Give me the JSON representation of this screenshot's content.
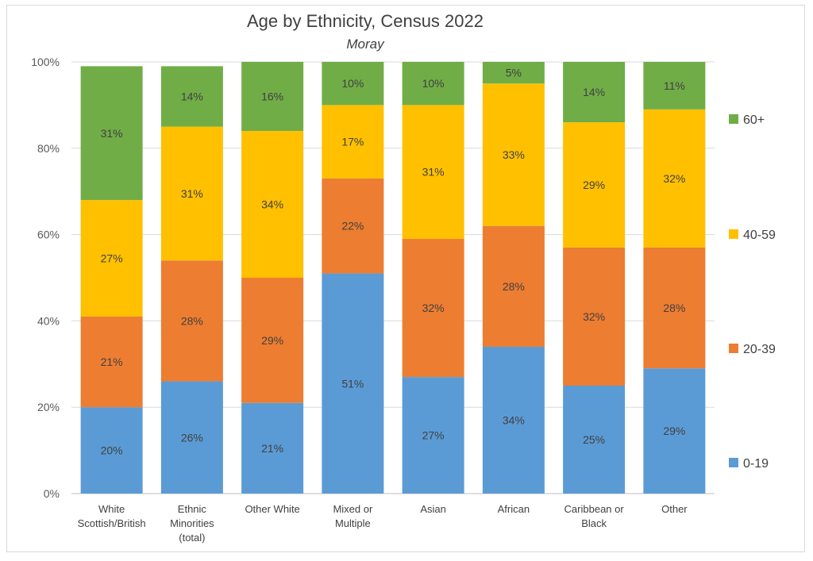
{
  "chart_data": {
    "type": "bar",
    "stacked": true,
    "title": "Age by Ethnicity, Census 2022",
    "subtitle": "Moray",
    "categories": [
      [
        "White",
        "Scottish/British"
      ],
      [
        "Ethnic",
        "Minorities",
        "(total)"
      ],
      [
        "Other White"
      ],
      [
        "Mixed or",
        "Multiple"
      ],
      [
        "Asian"
      ],
      [
        "African"
      ],
      [
        "Caribbean or",
        "Black"
      ],
      [
        "Other"
      ]
    ],
    "series": [
      {
        "name": "0-19",
        "color": "#5b9bd5",
        "values": [
          20,
          26,
          21,
          51,
          27,
          34,
          25,
          29
        ]
      },
      {
        "name": "20-39",
        "color": "#ed7d31",
        "values": [
          21,
          28,
          29,
          22,
          32,
          28,
          32,
          28
        ]
      },
      {
        "name": "40-59",
        "color": "#ffc000",
        "values": [
          27,
          31,
          34,
          17,
          31,
          33,
          29,
          32
        ]
      },
      {
        "name": "60+",
        "color": "#70ad47",
        "values": [
          31,
          14,
          16,
          10,
          10,
          5,
          14,
          11
        ]
      }
    ],
    "y_ticks": [
      "0%",
      "20%",
      "40%",
      "60%",
      "80%",
      "100%"
    ],
    "ylim": [
      0,
      100
    ],
    "legend_position": "right",
    "grid": true
  }
}
